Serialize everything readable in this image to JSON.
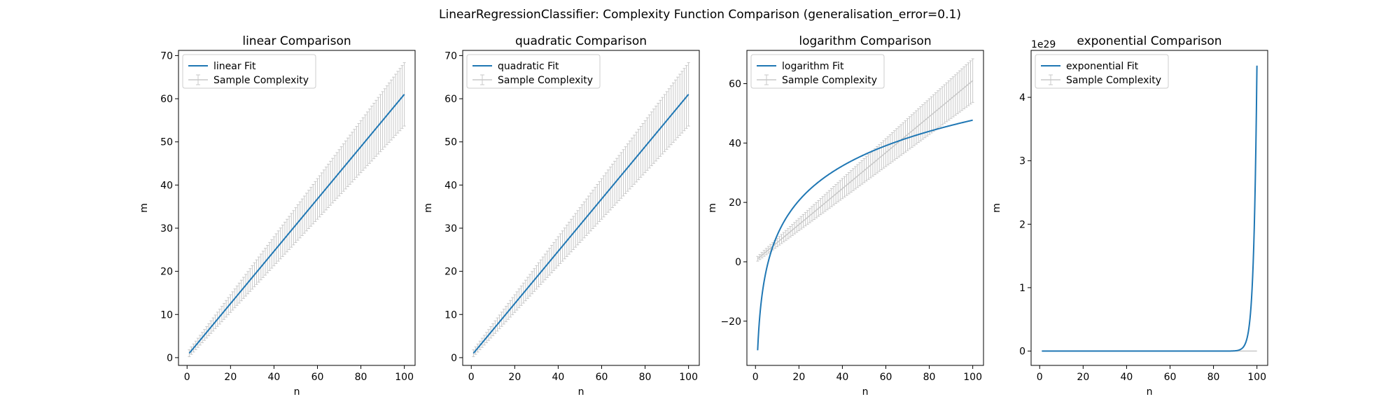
{
  "figure": {
    "suptitle": "LinearRegressionClassifier: Complexity Function Comparison (generalisation_error=0.1)"
  },
  "colors": {
    "fit": "#1f77b4",
    "sample": "#c8c8c8",
    "axes": "#000000",
    "background": "#ffffff"
  },
  "chart_data": [
    {
      "type": "line",
      "title": "linear Comparison",
      "xlabel": "n",
      "ylabel": "m",
      "xlim": [
        -3.95,
        104.95
      ],
      "ylim": [
        -1.8,
        71.2
      ],
      "xticks": [
        0,
        20,
        40,
        60,
        80,
        100
      ],
      "xtick_labels": [
        "0",
        "20",
        "40",
        "60",
        "80",
        "100"
      ],
      "yticks": [
        0,
        10,
        20,
        30,
        40,
        50,
        60,
        70
      ],
      "ytick_labels": [
        "0",
        "10",
        "20",
        "30",
        "40",
        "50",
        "60",
        "70"
      ],
      "offset_text": "",
      "grid": false,
      "legend_position": "top-left",
      "series": [
        {
          "name": "linear Fit",
          "kind": "line",
          "fit": {
            "form": "linear",
            "a": 0.6061,
            "b": 0.41
          },
          "x_range": [
            1,
            100
          ]
        },
        {
          "name": "Sample Complexity",
          "kind": "errorbar",
          "x_range": [
            1,
            100
          ],
          "mean": {
            "form": "linear",
            "a": 0.6061,
            "b": 0.41
          },
          "error": {
            "form": "linear",
            "a": 0.0662,
            "b": 0.73
          }
        }
      ]
    },
    {
      "type": "line",
      "title": "quadratic Comparison",
      "xlabel": "n",
      "ylabel": "m",
      "xlim": [
        -3.95,
        104.95
      ],
      "ylim": [
        -1.8,
        71.2
      ],
      "xticks": [
        0,
        20,
        40,
        60,
        80,
        100
      ],
      "xtick_labels": [
        "0",
        "20",
        "40",
        "60",
        "80",
        "100"
      ],
      "yticks": [
        0,
        10,
        20,
        30,
        40,
        50,
        60,
        70
      ],
      "ytick_labels": [
        "0",
        "10",
        "20",
        "30",
        "40",
        "50",
        "60",
        "70"
      ],
      "offset_text": "",
      "grid": false,
      "legend_position": "top-left",
      "series": [
        {
          "name": "quadratic Fit",
          "kind": "line",
          "fit": {
            "form": "linear",
            "a": 0.6061,
            "b": 0.41
          },
          "x_range": [
            1,
            100
          ]
        },
        {
          "name": "Sample Complexity",
          "kind": "errorbar",
          "x_range": [
            1,
            100
          ],
          "mean": {
            "form": "linear",
            "a": 0.6061,
            "b": 0.41
          },
          "error": {
            "form": "linear",
            "a": 0.0662,
            "b": 0.73
          }
        }
      ]
    },
    {
      "type": "line",
      "title": "logarithm Comparison",
      "xlabel": "n",
      "ylabel": "m",
      "xlim": [
        -3.95,
        104.95
      ],
      "ylim": [
        -34.9,
        71.2
      ],
      "xticks": [
        0,
        20,
        40,
        60,
        80,
        100
      ],
      "xtick_labels": [
        "0",
        "20",
        "40",
        "60",
        "80",
        "100"
      ],
      "yticks": [
        -20,
        0,
        20,
        40,
        60
      ],
      "ytick_labels": [
        "−20",
        "0",
        "20",
        "40",
        "60"
      ],
      "offset_text": "",
      "grid": false,
      "legend_position": "top-left",
      "series": [
        {
          "name": "logarithm Fit",
          "kind": "line",
          "fit": {
            "form": "log",
            "a": 16.83,
            "b": -29.8
          },
          "x_range": [
            1,
            100
          ]
        },
        {
          "name": "Sample Complexity",
          "kind": "errorbar",
          "x_range": [
            1,
            100
          ],
          "mean": {
            "form": "linear",
            "a": 0.6061,
            "b": 0.41
          },
          "error": {
            "form": "linear",
            "a": 0.0662,
            "b": 0.73
          }
        }
      ]
    },
    {
      "type": "line",
      "title": "exponential Comparison",
      "xlabel": "n",
      "ylabel": "m",
      "xlim": [
        -3.95,
        104.95
      ],
      "ylim": [
        -0.2257,
        4.74
      ],
      "xticks": [
        0,
        20,
        40,
        60,
        80,
        100
      ],
      "xtick_labels": [
        "0",
        "20",
        "40",
        "60",
        "80",
        "100"
      ],
      "yticks": [
        0,
        1,
        2,
        3,
        4
      ],
      "ytick_labels": [
        "0",
        "1",
        "2",
        "3",
        "4"
      ],
      "offset_text": "1e29",
      "grid": false,
      "legend_position": "top-left",
      "series": [
        {
          "name": "exponential Fit",
          "kind": "line",
          "fit": {
            "form": "exp",
            "a": 4.5,
            "k": 0.68,
            "x0": 100
          },
          "x_range": [
            1,
            100
          ]
        },
        {
          "name": "Sample Complexity",
          "kind": "errorbar",
          "x_range": [
            1,
            100
          ],
          "mean": {
            "form": "linear",
            "a": 0.0,
            "b": 0.0
          },
          "error": {
            "form": "linear",
            "a": 0.0,
            "b": 0.0
          }
        }
      ]
    }
  ]
}
